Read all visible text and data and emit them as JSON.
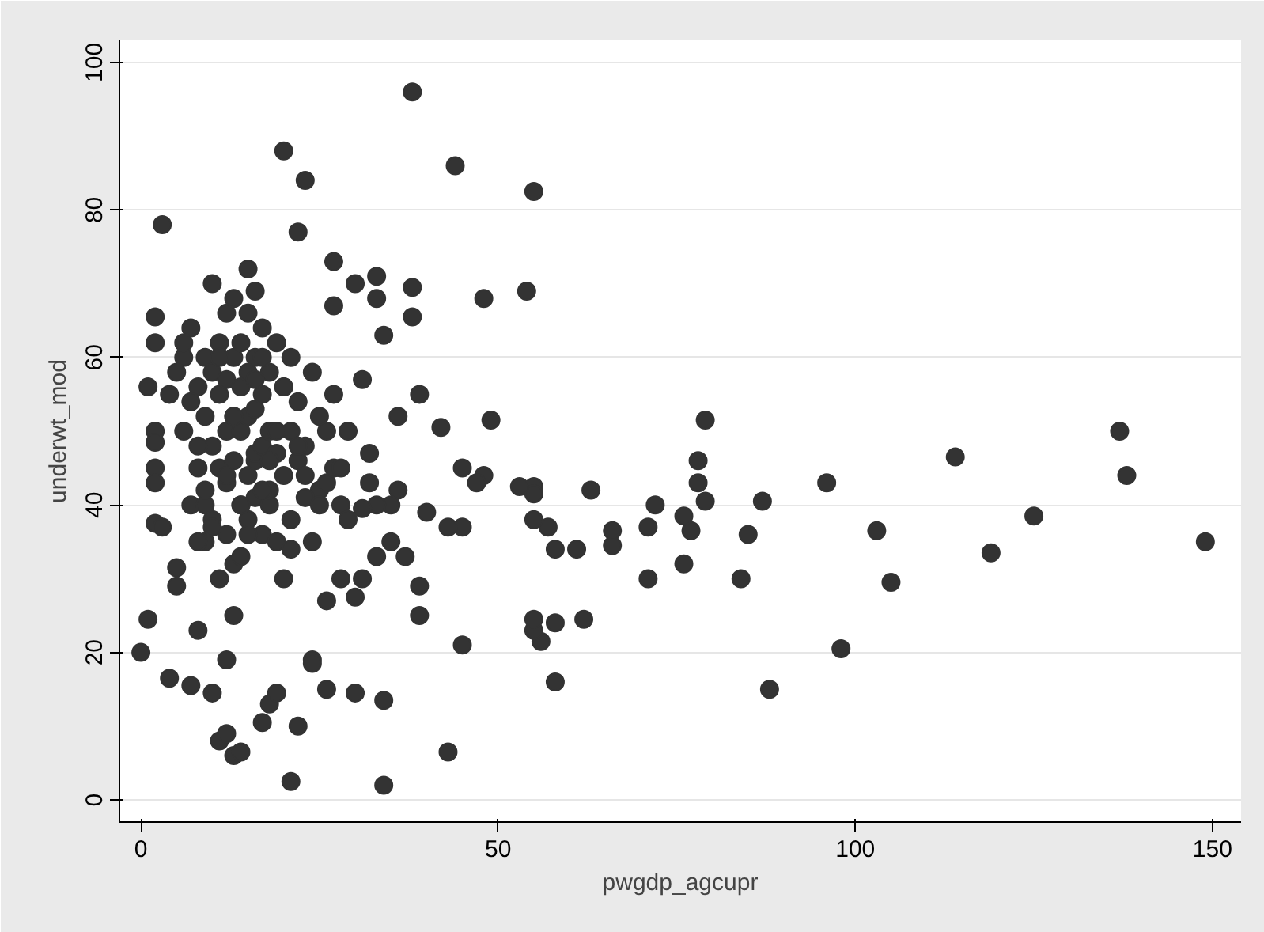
{
  "chart_data": {
    "type": "scatter",
    "xlabel": "pwgdp_agcupr",
    "ylabel": "underwt_mod",
    "xlim": [
      -3,
      154
    ],
    "ylim": [
      -3,
      103
    ],
    "xticks": [
      0,
      50,
      100,
      150
    ],
    "yticks": [
      0,
      20,
      40,
      60,
      80,
      100
    ],
    "grid": "y",
    "series": [
      {
        "color": "#333333",
        "x": [
          149,
          137,
          138,
          125,
          119,
          114,
          105,
          103,
          98,
          96,
          88,
          87,
          85,
          84,
          79,
          79,
          78,
          78,
          77,
          76,
          76,
          72,
          71,
          71,
          66,
          66,
          63,
          62,
          61,
          58,
          58,
          58,
          57,
          56,
          55,
          55,
          55,
          55,
          55,
          54,
          55,
          53,
          49,
          48,
          48,
          47,
          45,
          45,
          43,
          43,
          44,
          45,
          42,
          40,
          38,
          38,
          38,
          39,
          39,
          39,
          36,
          36,
          35,
          34,
          34,
          33,
          32,
          33,
          35,
          37,
          0,
          1,
          1,
          2,
          2,
          3,
          2,
          2,
          2,
          2,
          2,
          3,
          4,
          5,
          5,
          7,
          8,
          9,
          10,
          11,
          12,
          13,
          14,
          12,
          13,
          17,
          18,
          19,
          20,
          21,
          22,
          22,
          23,
          24,
          24,
          26,
          26,
          27,
          27,
          30,
          30,
          31,
          31,
          33,
          33,
          34,
          32,
          31,
          28,
          25,
          6,
          6,
          7,
          7,
          8,
          8,
          8,
          9,
          9,
          9,
          10,
          10,
          10,
          10,
          11,
          11,
          11,
          11,
          12,
          12,
          12,
          12,
          12,
          13,
          13,
          13,
          13,
          13,
          14,
          14,
          14,
          14,
          14,
          15,
          15,
          15,
          15,
          15,
          16,
          16,
          16,
          16,
          16,
          17,
          17,
          17,
          17,
          18,
          18,
          18,
          18,
          19,
          19,
          19,
          20,
          20,
          20,
          21,
          21,
          21,
          22,
          22,
          23,
          23,
          24,
          25,
          26,
          27,
          28,
          29,
          4,
          5,
          6,
          7,
          8,
          9,
          10,
          11,
          12,
          13,
          14,
          15,
          16,
          17,
          18,
          19,
          20,
          21,
          22,
          23,
          24,
          25,
          26,
          27,
          28,
          29,
          30,
          15,
          16,
          17
        ],
        "values": [
          35,
          50,
          44,
          38.5,
          33.5,
          46.5,
          29.5,
          36.5,
          20.5,
          43,
          15,
          40.5,
          36,
          30,
          51.5,
          40.5,
          43,
          46,
          36.5,
          38.5,
          32,
          40,
          37,
          30,
          34.5,
          36.5,
          42,
          24.5,
          34,
          24,
          16,
          34,
          37,
          21.5,
          23,
          24.5,
          42.5,
          41.5,
          38,
          69,
          82.5,
          42.5,
          51.5,
          44,
          68,
          43,
          45,
          37,
          37,
          6.5,
          86,
          21,
          50.5,
          39,
          96,
          69.5,
          65.5,
          55,
          29,
          25,
          52,
          42,
          40,
          13.5,
          2,
          40,
          47,
          33,
          35,
          33,
          20,
          24.5,
          56,
          65.5,
          62,
          78,
          50,
          48.5,
          45,
          43,
          37.5,
          37,
          16.5,
          31.5,
          29,
          15.5,
          23,
          35,
          14.5,
          8,
          9,
          6,
          6.5,
          19,
          25,
          10.5,
          13,
          14.5,
          88,
          2.5,
          10,
          77,
          84,
          19,
          18.5,
          15,
          27,
          73,
          67,
          14.5,
          27.5,
          39.5,
          57,
          71,
          68,
          63,
          43,
          30,
          30,
          42,
          60,
          50,
          64,
          40,
          56,
          45,
          35,
          60,
          52,
          40,
          70,
          58,
          48,
          38,
          30,
          62,
          55,
          45,
          36,
          66,
          57,
          50,
          43,
          32,
          68,
          60,
          52,
          46,
          40,
          33,
          62,
          56,
          50,
          44,
          38,
          66,
          58,
          52,
          46,
          41,
          60,
          53,
          47,
          36,
          64,
          55,
          48,
          40,
          58,
          50,
          42,
          62,
          47,
          35,
          56,
          44,
          30,
          50,
          38,
          60,
          46,
          54,
          41,
          48,
          35,
          52,
          43,
          45,
          40,
          50,
          55,
          58,
          62,
          54,
          48,
          42,
          37,
          60,
          44,
          52,
          40,
          36,
          57,
          42,
          46,
          50,
          56,
          34,
          48,
          44,
          58,
          40,
          50,
          55,
          45,
          38,
          70,
          72,
          69,
          60
        ]
      }
    ]
  }
}
